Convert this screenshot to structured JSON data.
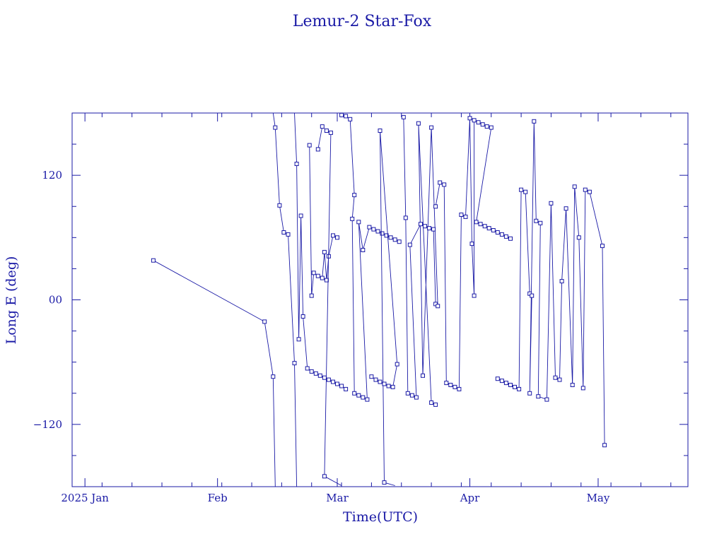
{
  "colors": {
    "ink": "#1a1aa6",
    "background": "#ffffff"
  },
  "chart_data": {
    "type": "scatter",
    "title": "Lemur-2 Star-Fox",
    "xlabel": "Time(UTC)",
    "ylabel": "Long E (deg)",
    "x_is_date": true,
    "xlim": [
      "2024-12-29",
      "2025-05-22"
    ],
    "ylim": [
      -180,
      180
    ],
    "x_ticks": [
      {
        "date": "2025-01-01",
        "label": "2025 Jan"
      },
      {
        "date": "2025-02-01",
        "label": "Feb"
      },
      {
        "date": "2025-03-01",
        "label": "Mar"
      },
      {
        "date": "2025-04-01",
        "label": "Apr"
      },
      {
        "date": "2025-05-01",
        "label": "May"
      }
    ],
    "y_ticks": [
      {
        "value": 120,
        "label": "120"
      },
      {
        "value": 0,
        "label": "00"
      },
      {
        "value": -120,
        "label": "−120"
      }
    ],
    "grid": false,
    "legend": "none",
    "marker": "open-square",
    "series": [
      {
        "values": [
          [
            "2025-01-17T00:00",
            38
          ],
          [
            "2025-02-12T00:00",
            -21
          ],
          [
            "2025-02-14T00:00",
            -74
          ],
          [
            "2025-02-14T12:00",
            -180
          ]
        ]
      },
      {
        "values": [
          [
            "2025-02-14T00:00",
            180
          ],
          [
            "2025-02-14T12:00",
            166
          ],
          [
            "2025-02-15T12:00",
            91
          ],
          [
            "2025-02-16T12:00",
            65
          ],
          [
            "2025-02-17T12:00",
            63
          ],
          [
            "2025-02-19T00:00",
            -61
          ],
          [
            "2025-02-19T12:00",
            -180
          ]
        ]
      },
      {
        "values": [
          [
            "2025-02-19T00:00",
            180
          ],
          [
            "2025-02-19T12:00",
            131
          ],
          [
            "2025-02-20T00:00",
            -38
          ],
          [
            "2025-02-20T12:00",
            81
          ],
          [
            "2025-02-21T00:00",
            -16
          ],
          [
            "2025-02-22T00:00",
            -66
          ],
          [
            "2025-02-23T00:00",
            -69
          ],
          [
            "2025-02-24T00:00",
            -71
          ],
          [
            "2025-02-25T00:00",
            -73
          ],
          [
            "2025-02-26T00:00",
            -75
          ],
          [
            "2025-02-27T00:00",
            -77
          ],
          [
            "2025-02-28T00:00",
            -79
          ],
          [
            "2025-03-01T00:00",
            -81
          ],
          [
            "2025-03-02T00:00",
            -83
          ],
          [
            "2025-03-03T00:00",
            -86
          ]
        ]
      },
      {
        "values": [
          [
            "2025-02-22T12:00",
            149
          ],
          [
            "2025-02-23T00:00",
            4
          ],
          [
            "2025-02-23T12:00",
            26
          ],
          [
            "2025-02-24T12:00",
            23
          ],
          [
            "2025-02-25T12:00",
            21
          ],
          [
            "2025-02-26T00:00",
            46
          ],
          [
            "2025-02-26T12:00",
            19
          ],
          [
            "2025-02-27T00:00",
            42
          ],
          [
            "2025-02-28T00:00",
            62
          ],
          [
            "2025-02-29T00:00",
            60
          ]
        ]
      },
      {
        "values": [
          [
            "2025-02-24T12:00",
            145
          ],
          [
            "2025-02-25T12:00",
            167
          ],
          [
            "2025-02-26T12:00",
            163
          ],
          [
            "2025-02-27T12:00",
            161
          ],
          [
            "2025-02-26T00:00",
            -170
          ],
          [
            "2025-03-02T00:00",
            -179
          ]
        ]
      },
      {
        "values": [
          [
            "2025-03-02T00:00",
            178
          ],
          [
            "2025-03-03T00:00",
            177
          ],
          [
            "2025-03-04T00:00",
            174
          ],
          [
            "2025-03-05T00:00",
            101
          ],
          [
            "2025-03-04T12:00",
            78
          ],
          [
            "2025-03-05T00:00",
            -90
          ],
          [
            "2025-03-06T00:00",
            -92
          ],
          [
            "2025-03-07T00:00",
            -94
          ],
          [
            "2025-03-08T00:00",
            -96
          ],
          [
            "2025-03-06T00:00",
            75
          ],
          [
            "2025-03-07T00:00",
            48
          ],
          [
            "2025-03-08T12:00",
            70
          ],
          [
            "2025-03-09T12:00",
            68
          ],
          [
            "2025-03-10T12:00",
            66
          ],
          [
            "2025-03-11T12:00",
            64
          ],
          [
            "2025-03-12T12:00",
            62
          ],
          [
            "2025-03-13T12:00",
            60
          ],
          [
            "2025-03-14T12:00",
            58
          ],
          [
            "2025-03-15T12:00",
            56
          ]
        ]
      },
      {
        "values": [
          [
            "2025-03-09T00:00",
            -74
          ],
          [
            "2025-03-10T00:00",
            -77
          ],
          [
            "2025-03-11T00:00",
            -79
          ],
          [
            "2025-03-12T00:00",
            -81
          ],
          [
            "2025-03-13T00:00",
            -83
          ],
          [
            "2025-03-14T00:00",
            -84
          ],
          [
            "2025-03-15T00:00",
            -62
          ],
          [
            "2025-03-11T00:00",
            163
          ],
          [
            "2025-03-12T00:00",
            -176
          ],
          [
            "2025-03-14T12:00",
            -179
          ]
        ]
      },
      {
        "values": [
          [
            "2025-03-16T12:00",
            176
          ],
          [
            "2025-03-17T00:00",
            79
          ],
          [
            "2025-03-17T12:00",
            -90
          ],
          [
            "2025-03-18T12:00",
            -92
          ],
          [
            "2025-03-19T12:00",
            -94
          ],
          [
            "2025-03-18T00:00",
            53
          ],
          [
            "2025-03-20T12:00",
            73
          ],
          [
            "2025-03-21T12:00",
            71
          ],
          [
            "2025-03-22T12:00",
            69
          ],
          [
            "2025-03-23T12:00",
            68
          ],
          [
            "2025-03-24T00:00",
            -4
          ],
          [
            "2025-03-24T12:00",
            -6
          ],
          [
            "2025-03-23T00:00",
            166
          ],
          [
            "2025-03-21T00:00",
            -73
          ],
          [
            "2025-03-20T00:00",
            170
          ],
          [
            "2025-03-23T00:00",
            -99
          ],
          [
            "2025-03-24T00:00",
            -101
          ]
        ]
      },
      {
        "values": [
          [
            "2025-03-24T00:00",
            90
          ],
          [
            "2025-03-25T00:00",
            113
          ],
          [
            "2025-03-26T00:00",
            111
          ],
          [
            "2025-03-26T12:00",
            -80
          ],
          [
            "2025-03-27T12:00",
            -82
          ],
          [
            "2025-03-28T12:00",
            -84
          ],
          [
            "2025-03-29T12:00",
            -86
          ],
          [
            "2025-03-30T00:00",
            82
          ],
          [
            "2025-03-31T00:00",
            80
          ],
          [
            "2025-04-01T00:00",
            175
          ],
          [
            "2025-04-01T12:00",
            54
          ],
          [
            "2025-04-02T00:00",
            4
          ],
          [
            "2025-04-02T00:00",
            173
          ],
          [
            "2025-04-03T00:00",
            171
          ],
          [
            "2025-04-04T00:00",
            169
          ],
          [
            "2025-04-05T00:00",
            167
          ],
          [
            "2025-04-06T00:00",
            166
          ],
          [
            "2025-04-02T12:00",
            75
          ],
          [
            "2025-04-03T12:00",
            73
          ],
          [
            "2025-04-04T12:00",
            71
          ],
          [
            "2025-04-05T12:00",
            69
          ],
          [
            "2025-04-06T12:00",
            67
          ],
          [
            "2025-04-07T12:00",
            65
          ],
          [
            "2025-04-08T12:00",
            63
          ],
          [
            "2025-04-09T12:00",
            61
          ],
          [
            "2025-04-10T12:00",
            59
          ]
        ]
      },
      {
        "values": [
          [
            "2025-04-07T12:00",
            -76
          ],
          [
            "2025-04-08T12:00",
            -78
          ],
          [
            "2025-04-09T12:00",
            -80
          ],
          [
            "2025-04-10T12:00",
            -82
          ],
          [
            "2025-04-11T12:00",
            -84
          ],
          [
            "2025-04-12T12:00",
            -86
          ],
          [
            "2025-04-13T00:00",
            106
          ],
          [
            "2025-04-14T00:00",
            104
          ],
          [
            "2025-04-15T00:00",
            6
          ],
          [
            "2025-04-15T12:00",
            4
          ],
          [
            "2025-04-15T00:00",
            -90
          ],
          [
            "2025-04-16T00:00",
            172
          ],
          [
            "2025-04-16T12:00",
            76
          ],
          [
            "2025-04-17T12:00",
            74
          ],
          [
            "2025-04-17T00:00",
            -93
          ],
          [
            "2025-04-19T00:00",
            -96
          ],
          [
            "2025-04-20T00:00",
            93
          ],
          [
            "2025-04-21T00:00",
            -75
          ],
          [
            "2025-04-22T00:00",
            -77
          ],
          [
            "2025-04-22T12:00",
            18
          ],
          [
            "2025-04-23T12:00",
            88
          ],
          [
            "2025-04-25T00:00",
            -82
          ],
          [
            "2025-04-25T12:00",
            109
          ],
          [
            "2025-04-26T12:00",
            60
          ],
          [
            "2025-04-27T12:00",
            -85
          ],
          [
            "2025-04-28T00:00",
            106
          ],
          [
            "2025-04-29T00:00",
            104
          ],
          [
            "2025-05-02T00:00",
            52
          ],
          [
            "2025-05-02T12:00",
            -140
          ]
        ]
      }
    ]
  }
}
